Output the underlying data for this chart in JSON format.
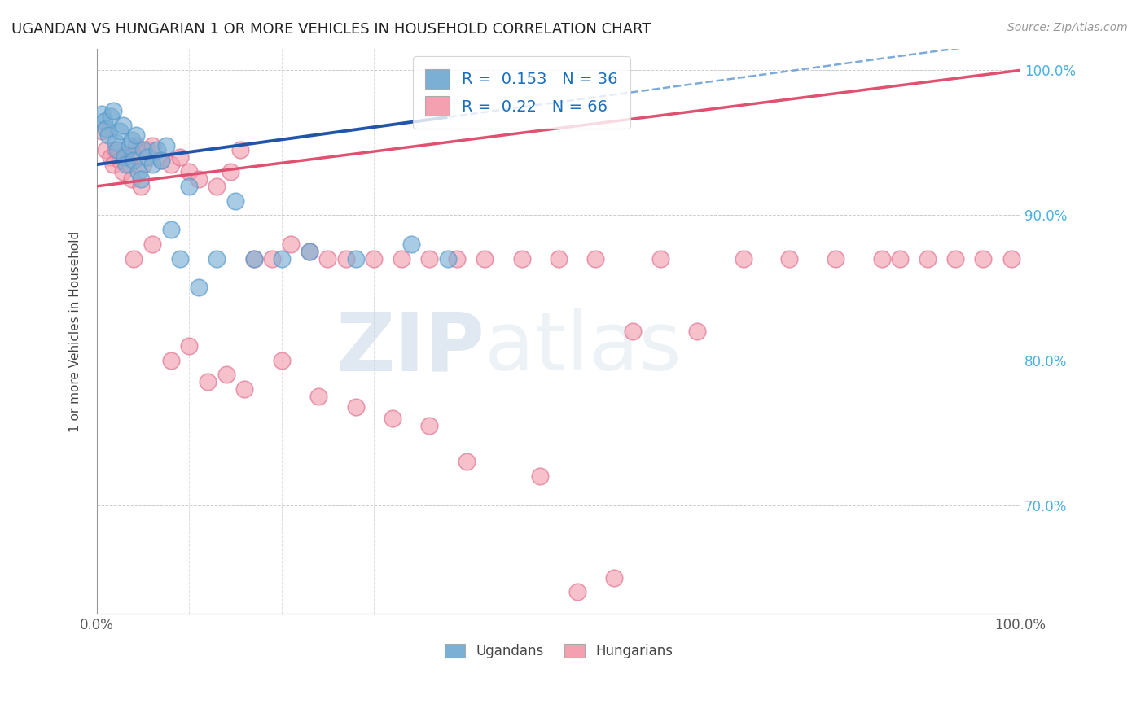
{
  "title": "UGANDAN VS HUNGARIAN 1 OR MORE VEHICLES IN HOUSEHOLD CORRELATION CHART",
  "source": "Source: ZipAtlas.com",
  "ylabel": "1 or more Vehicles in Household",
  "x_min": 0.0,
  "x_max": 1.0,
  "y_min": 0.625,
  "y_max": 1.015,
  "y_ticks": [
    0.7,
    0.8,
    0.9,
    1.0
  ],
  "y_tick_labels": [
    "70.0%",
    "80.0%",
    "90.0%",
    "100.0%"
  ],
  "ugandan_color": "#7bafd4",
  "ugandan_edge": "#5599cc",
  "hungarian_color": "#f4a0b0",
  "hungarian_edge": "#e07090",
  "ugandan_R": 0.153,
  "ugandan_N": 36,
  "hungarian_R": 0.22,
  "hungarian_N": 66,
  "watermark_zip": "ZIP",
  "watermark_atlas": "atlas",
  "legend_ugandans": "Ugandans",
  "legend_hungarians": "Hungarians",
  "ugandan_x": [
    0.005,
    0.008,
    0.01,
    0.012,
    0.015,
    0.018,
    0.02,
    0.022,
    0.025,
    0.028,
    0.03,
    0.032,
    0.035,
    0.038,
    0.04,
    0.042,
    0.045,
    0.048,
    0.05,
    0.055,
    0.06,
    0.065,
    0.07,
    0.075,
    0.08,
    0.09,
    0.1,
    0.11,
    0.13,
    0.15,
    0.17,
    0.2,
    0.23,
    0.28,
    0.34,
    0.38
  ],
  "ugandan_y": [
    0.97,
    0.965,
    0.96,
    0.955,
    0.968,
    0.972,
    0.95,
    0.945,
    0.958,
    0.962,
    0.94,
    0.935,
    0.948,
    0.952,
    0.938,
    0.955,
    0.93,
    0.925,
    0.945,
    0.94,
    0.935,
    0.945,
    0.938,
    0.948,
    0.89,
    0.87,
    0.92,
    0.85,
    0.87,
    0.91,
    0.87,
    0.87,
    0.875,
    0.87,
    0.88,
    0.87
  ],
  "hungarian_x": [
    0.005,
    0.01,
    0.015,
    0.018,
    0.02,
    0.025,
    0.028,
    0.03,
    0.035,
    0.038,
    0.04,
    0.042,
    0.048,
    0.05,
    0.055,
    0.06,
    0.07,
    0.08,
    0.09,
    0.1,
    0.11,
    0.13,
    0.145,
    0.155,
    0.17,
    0.19,
    0.21,
    0.23,
    0.25,
    0.27,
    0.3,
    0.33,
    0.36,
    0.39,
    0.42,
    0.46,
    0.5,
    0.54,
    0.58,
    0.61,
    0.65,
    0.7,
    0.75,
    0.8,
    0.85,
    0.87,
    0.9,
    0.93,
    0.96,
    0.99,
    0.04,
    0.06,
    0.08,
    0.1,
    0.12,
    0.14,
    0.16,
    0.2,
    0.24,
    0.28,
    0.32,
    0.36,
    0.4,
    0.48,
    0.52,
    0.56
  ],
  "hungarian_y": [
    0.958,
    0.945,
    0.94,
    0.935,
    0.945,
    0.938,
    0.93,
    0.942,
    0.935,
    0.925,
    0.942,
    0.948,
    0.92,
    0.935,
    0.945,
    0.948,
    0.938,
    0.935,
    0.94,
    0.93,
    0.925,
    0.92,
    0.93,
    0.945,
    0.87,
    0.87,
    0.88,
    0.875,
    0.87,
    0.87,
    0.87,
    0.87,
    0.87,
    0.87,
    0.87,
    0.87,
    0.87,
    0.87,
    0.82,
    0.87,
    0.82,
    0.87,
    0.87,
    0.87,
    0.87,
    0.87,
    0.87,
    0.87,
    0.87,
    0.87,
    0.87,
    0.88,
    0.8,
    0.81,
    0.785,
    0.79,
    0.78,
    0.8,
    0.775,
    0.768,
    0.76,
    0.755,
    0.73,
    0.72,
    0.64,
    0.65
  ]
}
